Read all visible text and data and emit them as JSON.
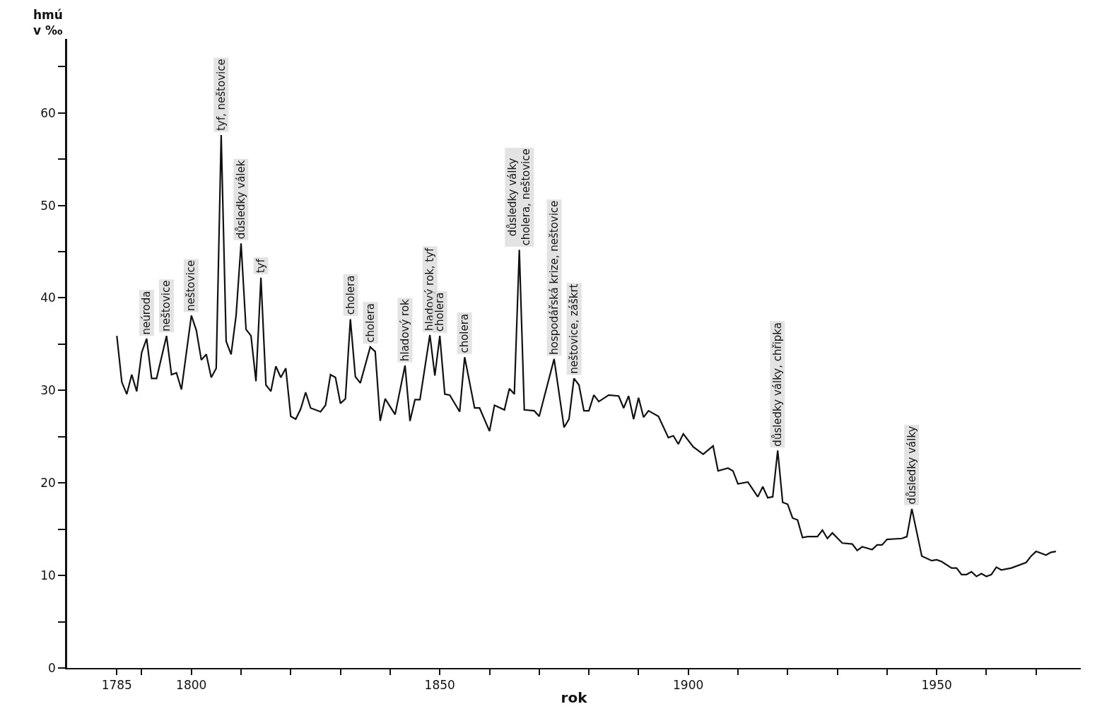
{
  "chart_data": {
    "type": "line",
    "xlabel": "rok",
    "ylabel": "hmú\nv ‰",
    "x": [
      1785,
      1786,
      1787,
      1788,
      1789,
      1790,
      1791,
      1792,
      1793,
      1795,
      1796,
      1797,
      1798,
      1800,
      1801,
      1802,
      1803,
      1804,
      1805,
      1806,
      1807,
      1808,
      1809,
      1810,
      1811,
      1812,
      1813,
      1814,
      1815,
      1816,
      1817,
      1818,
      1819,
      1820,
      1821,
      1822,
      1823,
      1824,
      1826,
      1827,
      1828,
      1829,
      1830,
      1831,
      1832,
      1833,
      1834,
      1836,
      1837,
      1838,
      1839,
      1841,
      1843,
      1844,
      1845,
      1846,
      1848,
      1849,
      1850,
      1851,
      1852,
      1854,
      1855,
      1857,
      1858,
      1860,
      1861,
      1863,
      1864,
      1865,
      1866,
      1867,
      1869,
      1870,
      1873,
      1875,
      1876,
      1877,
      1878,
      1879,
      1880,
      1881,
      1882,
      1884,
      1886,
      1887,
      1888,
      1889,
      1890,
      1891,
      1892,
      1894,
      1896,
      1897,
      1898,
      1899,
      1901,
      1903,
      1905,
      1906,
      1908,
      1909,
      1910,
      1912,
      1914,
      1915,
      1916,
      1917,
      1918,
      1919,
      1920,
      1921,
      1922,
      1923,
      1924,
      1926,
      1927,
      1928,
      1929,
      1931,
      1933,
      1934,
      1935,
      1937,
      1938,
      1939,
      1940,
      1943,
      1944,
      1945,
      1947,
      1949,
      1950,
      1951,
      1953,
      1954,
      1955,
      1956,
      1957,
      1958,
      1959,
      1960,
      1961,
      1962,
      1963,
      1965,
      1968,
      1969,
      1970,
      1972,
      1973,
      1974
    ],
    "series": [
      {
        "color": "#111111",
        "values": [
          35.9,
          30.9,
          29.6,
          31.7,
          29.9,
          34.1,
          35.6,
          31.3,
          31.3,
          35.9,
          31.7,
          31.9,
          30.1,
          38.1,
          36.5,
          33.3,
          33.9,
          31.4,
          32.4,
          57.6,
          35.3,
          33.9,
          38.1,
          45.9,
          36.6,
          35.9,
          31.0,
          42.2,
          30.6,
          29.9,
          32.6,
          31.4,
          32.4,
          27.2,
          26.9,
          28.0,
          29.8,
          28.1,
          27.7,
          28.4,
          31.7,
          31.4,
          28.6,
          29.1,
          37.7,
          31.5,
          30.8,
          34.7,
          34.2,
          26.7,
          29.1,
          27.4,
          32.7,
          26.7,
          29.0,
          29.0,
          36.0,
          31.6,
          35.9,
          29.6,
          29.5,
          27.7,
          33.6,
          28.1,
          28.1,
          25.6,
          28.4,
          27.9,
          30.2,
          29.6,
          45.2,
          27.9,
          27.8,
          27.2,
          33.4,
          26.0,
          26.9,
          31.3,
          30.6,
          27.8,
          27.8,
          29.5,
          28.8,
          29.5,
          29.4,
          28.1,
          29.4,
          26.9,
          29.2,
          27.1,
          27.8,
          27.2,
          24.9,
          25.1,
          24.2,
          25.3,
          23.9,
          23.1,
          24.0,
          21.3,
          21.6,
          21.3,
          19.9,
          20.1,
          18.5,
          19.6,
          18.4,
          18.5,
          23.5,
          17.9,
          17.7,
          16.2,
          16.0,
          14.1,
          14.2,
          14.2,
          14.9,
          14.0,
          14.6,
          13.5,
          13.4,
          12.7,
          13.1,
          12.8,
          13.3,
          13.3,
          13.9,
          14.0,
          14.2,
          17.2,
          12.1,
          11.6,
          11.7,
          11.5,
          10.8,
          10.8,
          10.1,
          10.1,
          10.4,
          9.9,
          10.2,
          9.9,
          10.1,
          10.9,
          10.6,
          10.8,
          11.4,
          12.1,
          12.6,
          12.2,
          12.5,
          12.6
        ]
      }
    ],
    "xlim": [
      1775,
      1979
    ],
    "xticks": [
      1785,
      {
        "value": 1790,
        "label": null
      },
      1800,
      {
        "value": 1810,
        "label": null
      },
      {
        "value": 1820,
        "label": null
      },
      {
        "value": 1830,
        "label": null
      },
      {
        "value": 1840,
        "label": null
      },
      1850,
      {
        "value": 1860,
        "label": null
      },
      {
        "value": 1870,
        "label": null
      },
      {
        "value": 1880,
        "label": null
      },
      {
        "value": 1890,
        "label": null
      },
      1900,
      {
        "value": 1910,
        "label": null
      },
      {
        "value": 1920,
        "label": null
      },
      {
        "value": 1930,
        "label": null
      },
      {
        "value": 1940,
        "label": null
      },
      1950,
      {
        "value": 1960,
        "label": null
      },
      {
        "value": 1970,
        "label": null
      }
    ],
    "ylim": [
      0,
      68
    ],
    "yticks": [
      0,
      {
        "value": 5,
        "label": null
      },
      10,
      {
        "value": 15,
        "label": null
      },
      20,
      {
        "value": 25,
        "label": null
      },
      30,
      {
        "value": 35,
        "label": null
      },
      40,
      {
        "value": 45,
        "label": null
      },
      50,
      {
        "value": 55,
        "label": null
      },
      60,
      {
        "value": 65,
        "label": null
      }
    ],
    "marker": "none",
    "line_style": "solid",
    "annotations": [
      {
        "text": "neúroda",
        "x": 1791,
        "y": 35.6
      },
      {
        "text": "neštovice",
        "x": 1795,
        "y": 35.9
      },
      {
        "text": "neštovice",
        "x": 1800,
        "y": 38.1
      },
      {
        "text": "tyf, neštovice",
        "x": 1806,
        "y": 57.6
      },
      {
        "text": "důsledky válek",
        "x": 1810,
        "y": 45.9
      },
      {
        "text": "tyf",
        "x": 1814,
        "y": 42.2
      },
      {
        "text": "cholera",
        "x": 1832,
        "y": 37.7
      },
      {
        "text": "cholera",
        "x": 1836,
        "y": 34.7
      },
      {
        "text": "hladový rok",
        "x": 1843,
        "y": 32.7
      },
      {
        "text": "hladový rok, tyf",
        "x": 1848,
        "y": 36.0
      },
      {
        "text": "cholera",
        "x": 1850,
        "y": 35.9
      },
      {
        "text": "cholera",
        "x": 1855,
        "y": 33.6
      },
      {
        "text": "důsledky války\ncholera, neštovice",
        "x": 1866,
        "y": 45.2
      },
      {
        "text": "hospodářská krize, neštovice",
        "x": 1873,
        "y": 33.4
      },
      {
        "text": "neštovice, záškrt",
        "x": 1877,
        "y": 31.3
      },
      {
        "text": "důsledky války, chřipka",
        "x": 1918,
        "y": 23.5
      },
      {
        "text": "důsledky války",
        "x": 1945,
        "y": 17.2
      }
    ]
  }
}
